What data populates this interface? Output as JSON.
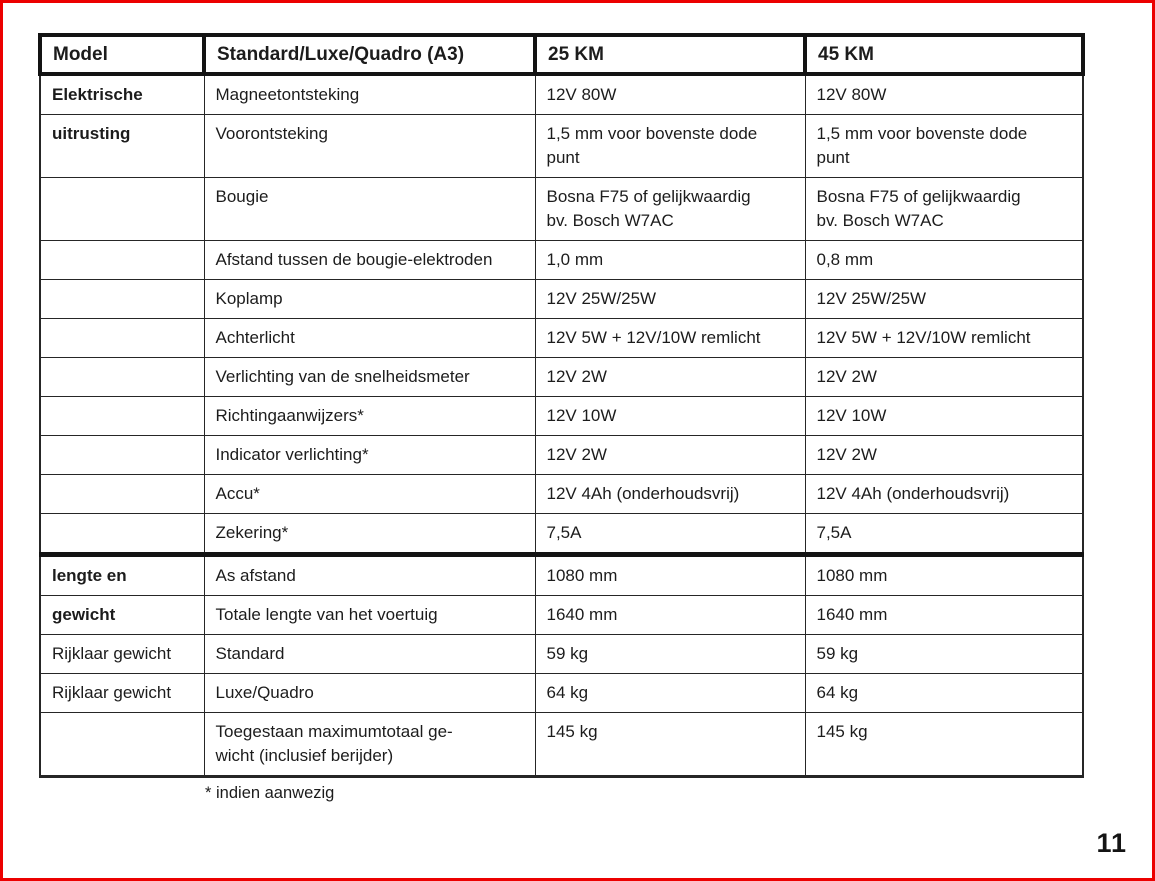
{
  "page": {
    "number": "11",
    "footnote": "* indien aanwezig",
    "frame_color": "#ec0000"
  },
  "table": {
    "headers": [
      "Model",
      "Standard/Luxe/Quadro (A3)",
      "25 KM",
      "45 KM"
    ],
    "rows": [
      {
        "group": "Elektrische",
        "group_bold": true,
        "item": "Magneetontsteking",
        "v25": "12V 80W",
        "v45": "12V 80W",
        "section_end": false
      },
      {
        "group": "uitrusting",
        "group_bold": true,
        "item": "Voorontsteking",
        "v25": "1,5 mm voor bovenste dode\npunt",
        "v45": "1,5 mm voor bovenste dode\npunt",
        "section_end": false
      },
      {
        "group": "",
        "group_bold": false,
        "item": "Bougie",
        "v25": "Bosna F75 of gelijkwaardig\nbv. Bosch W7AC",
        "v45": "Bosna F75 of gelijkwaardig\nbv. Bosch W7AC",
        "section_end": false
      },
      {
        "group": "",
        "group_bold": false,
        "item": "Afstand tussen de bougie-elektroden",
        "v25": "1,0 mm",
        "v45": "0,8 mm",
        "section_end": false
      },
      {
        "group": "",
        "group_bold": false,
        "item": "Koplamp",
        "v25": "12V 25W/25W",
        "v45": "12V 25W/25W",
        "section_end": false
      },
      {
        "group": "",
        "group_bold": false,
        "item": "Achterlicht",
        "v25": "12V 5W + 12V/10W remlicht",
        "v45": "12V 5W + 12V/10W remlicht",
        "section_end": false
      },
      {
        "group": "",
        "group_bold": false,
        "item": "Verlichting van de snelheidsmeter",
        "v25": "12V 2W",
        "v45": "12V 2W",
        "section_end": false
      },
      {
        "group": "",
        "group_bold": false,
        "item": "Richtingaanwijzers*",
        "v25": "12V 10W",
        "v45": "12V 10W",
        "section_end": false
      },
      {
        "group": "",
        "group_bold": false,
        "item": "Indicator verlichting*",
        "v25": "12V 2W",
        "v45": "12V 2W",
        "section_end": false
      },
      {
        "group": "",
        "group_bold": false,
        "item": "Accu*",
        "v25": "12V 4Ah (onderhoudsvrij)",
        "v45": "12V 4Ah (onderhoudsvrij)",
        "section_end": false
      },
      {
        "group": "",
        "group_bold": false,
        "item": "Zekering*",
        "v25": "7,5A",
        "v45": "7,5A",
        "section_end": true
      },
      {
        "group": "lengte en",
        "group_bold": true,
        "item": "As afstand",
        "v25": "1080 mm",
        "v45": "1080 mm",
        "section_end": false
      },
      {
        "group": "gewicht",
        "group_bold": true,
        "item": "Totale lengte van het voertuig",
        "v25": "1640 mm",
        "v45": "1640 mm",
        "section_end": false
      },
      {
        "group": "Rijklaar gewicht",
        "group_bold": false,
        "item": "Standard",
        "v25": "59 kg",
        "v45": "59 kg",
        "section_end": false
      },
      {
        "group": "Rijklaar gewicht",
        "group_bold": false,
        "item": "Luxe/Quadro",
        "v25": "64 kg",
        "v45": "64 kg",
        "section_end": false
      },
      {
        "group": "",
        "group_bold": false,
        "item": "Toegestaan maximumtotaal ge-\nwicht (inclusief berijder)",
        "v25": "145 kg",
        "v45": "145 kg",
        "section_end": false
      }
    ]
  }
}
